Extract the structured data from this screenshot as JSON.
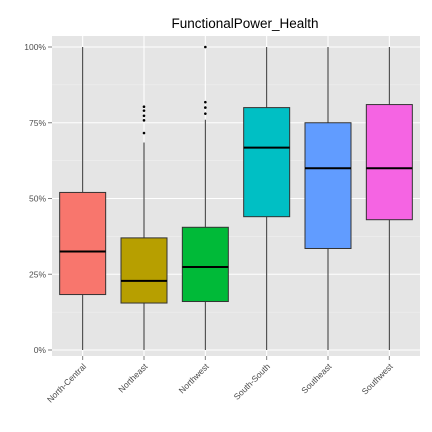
{
  "chart_data": {
    "type": "boxplot",
    "title": "FunctionalPower_Health",
    "xlabel": "",
    "ylabel": "",
    "ylim": [
      0,
      1
    ],
    "ytick_values": [
      0,
      0.25,
      0.5,
      0.75,
      1.0
    ],
    "ytick_labels": [
      "0%",
      "25%",
      "50%",
      "75%",
      "100%"
    ],
    "grid": true,
    "categories": [
      "North-Central",
      "Northeast",
      "Northwest",
      "South-South",
      "Southeast",
      "Southwest"
    ],
    "boxes": [
      {
        "category": "North-Central",
        "color": "#F8766D",
        "whisker_low": 0.0,
        "q1": 0.183,
        "median": 0.325,
        "q3": 0.52,
        "whisker_high": 1.0,
        "outliers": []
      },
      {
        "category": "Northeast",
        "color": "#B79F00",
        "whisker_low": 0.0,
        "q1": 0.155,
        "median": 0.228,
        "q3": 0.37,
        "whisker_high": 0.685,
        "outliers": [
          0.716,
          0.758,
          0.773,
          0.79,
          0.803
        ]
      },
      {
        "category": "Northwest",
        "color": "#00BA38",
        "whisker_low": 0.0,
        "q1": 0.16,
        "median": 0.274,
        "q3": 0.405,
        "whisker_high": 0.76,
        "outliers": [
          0.78,
          0.8,
          0.818,
          1.0
        ]
      },
      {
        "category": "South-South",
        "color": "#00BFC4",
        "whisker_low": 0.0,
        "q1": 0.44,
        "median": 0.668,
        "q3": 0.8,
        "whisker_high": 1.0,
        "outliers": []
      },
      {
        "category": "Southeast",
        "color": "#619CFF",
        "whisker_low": 0.0,
        "q1": 0.335,
        "median": 0.6,
        "q3": 0.75,
        "whisker_high": 1.0,
        "outliers": []
      },
      {
        "category": "Southwest",
        "color": "#F564E3",
        "whisker_low": 0.0,
        "q1": 0.43,
        "median": 0.6,
        "q3": 0.81,
        "whisker_high": 1.0,
        "outliers": []
      }
    ],
    "colors": {
      "panel_background": "#E5E5E5",
      "grid_major": "#FFFFFF",
      "grid_minor": "#F2F2F2",
      "box_outline": "#333333",
      "tick": "#7F7F7F"
    }
  }
}
